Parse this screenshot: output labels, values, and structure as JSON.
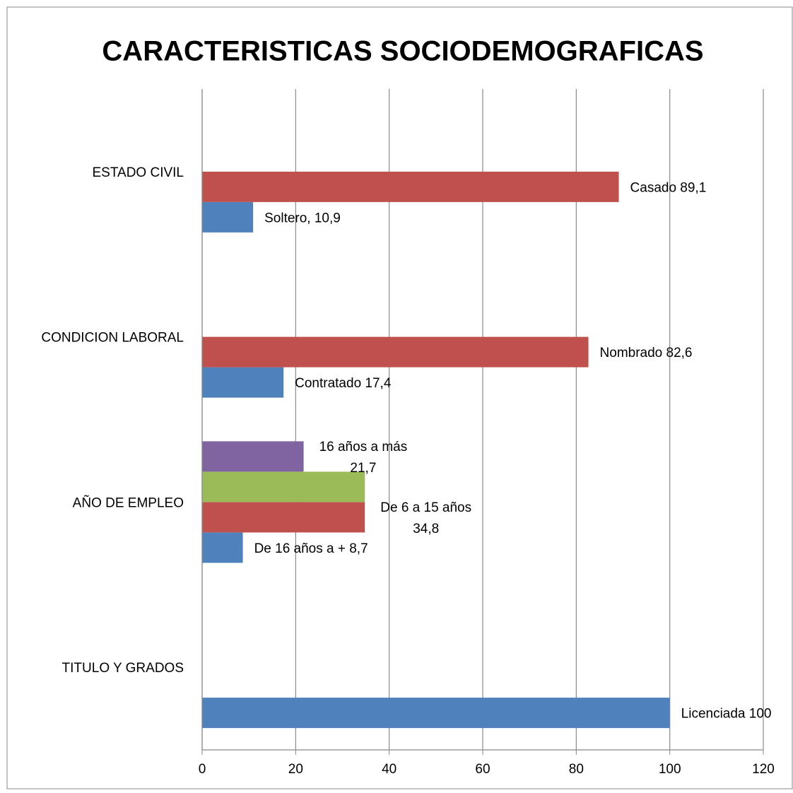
{
  "chart_data": {
    "type": "hbar",
    "title": "CARACTERISTICAS SOCIODEMOGRAFICAS",
    "categories": [
      "ESTADO CIVIL",
      "CONDICION LABORAL",
      "AÑO DE EMPLEO",
      "TITULO Y GRADOS"
    ],
    "series": [
      {
        "color": "#4f81bd",
        "values": [
          10.9,
          17.4,
          8.7,
          100
        ],
        "value_labels": [
          "Soltero, 10,9",
          "Contratado 17,4",
          "De 16 años a + 8,7",
          "Licenciada 100"
        ]
      },
      {
        "color": "#c0504d",
        "values": [
          89.1,
          82.6,
          34.8,
          null
        ],
        "value_labels": [
          "Casado  89,1",
          "Nombrado 82,6",
          "De 6 a 15 años\n34,8",
          null
        ]
      },
      {
        "color": "#9bbb59",
        "values": [
          null,
          null,
          34.8,
          null
        ],
        "value_labels": [
          null,
          null,
          null,
          null
        ]
      },
      {
        "color": "#8064a2",
        "values": [
          null,
          null,
          21.7,
          null
        ],
        "value_labels": [
          null,
          null,
          "16 años a más\n21,7",
          null
        ]
      }
    ],
    "xlim": [
      0,
      120
    ],
    "xticks": [
      0,
      20,
      40,
      60,
      80,
      100,
      120
    ],
    "grid": true
  }
}
